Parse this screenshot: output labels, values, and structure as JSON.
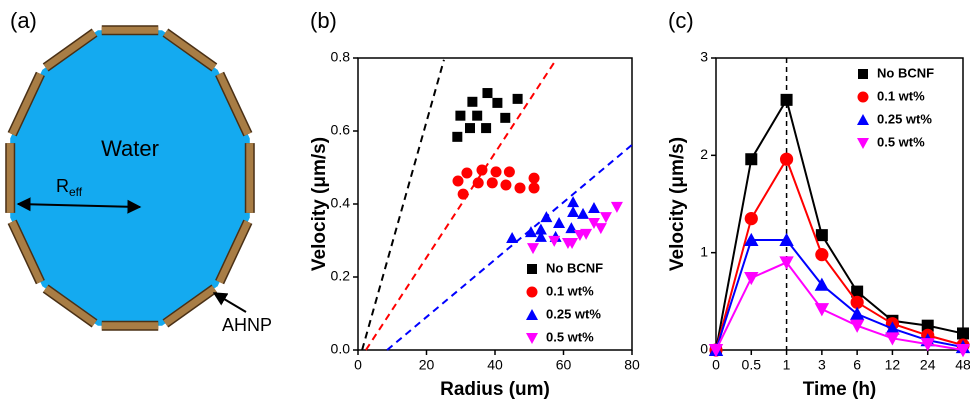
{
  "diagram": {
    "panel_label": "(a)",
    "inner_label": "Water",
    "radius_label": {
      "main": "R",
      "subscript": "eff"
    },
    "shell_label": "AHNP"
  },
  "chart_data": [
    {
      "type": "scatter",
      "panel_label": "(b)",
      "x_label": "Radius (um)",
      "y_label": "Velocity (μm/s)",
      "xlim": [
        0,
        80
      ],
      "xticks": [
        0,
        20,
        40,
        60,
        80
      ],
      "ylim": [
        0,
        0.8
      ],
      "yticks": [
        {
          "value": 0,
          "label": "0.0"
        },
        {
          "value": 0.2,
          "label": "0.2"
        },
        {
          "value": 0.4,
          "label": "0.4"
        },
        {
          "value": 0.6,
          "label": "0.6"
        },
        {
          "value": 0.8,
          "label": "0.8"
        }
      ],
      "legend": "lower right",
      "series": [
        {
          "name": "No BCNF",
          "color": "#000000",
          "marker": "square",
          "x": [
            29,
            29.9,
            33.4,
            37.8,
            40.7,
            37.4,
            32.7,
            34.8,
            43,
            46.6
          ],
          "values": [
            0.584,
            0.642,
            0.68,
            0.704,
            0.677,
            0.608,
            0.608,
            0.642,
            0.636,
            0.688
          ]
        },
        {
          "name": "0.1 wt%",
          "color": "#ff0000",
          "marker": "circle",
          "x": [
            29.2,
            31.8,
            36.2,
            40.3,
            44.2,
            51.4,
            51.4,
            47.3,
            43.2,
            39.2,
            35.1,
            30.7
          ],
          "values": [
            0.463,
            0.485,
            0.493,
            0.488,
            0.488,
            0.471,
            0.444,
            0.444,
            0.452,
            0.458,
            0.458,
            0.427
          ]
        },
        {
          "name": "0.25 wt%",
          "color": "#0000ff",
          "marker": "triangle",
          "x": [
            53.4,
            58.7,
            62.8,
            65.7,
            62.3,
            57.7,
            55,
            53.4,
            50.5,
            45,
            68.9,
            62.8
          ],
          "values": [
            0.31,
            0.348,
            0.378,
            0.373,
            0.334,
            0.31,
            0.364,
            0.33,
            0.323,
            0.307,
            0.389,
            0.405
          ]
        },
        {
          "name": "0.5 wt%",
          "color": "#ff00ff",
          "marker": "down-triangle",
          "x": [
            51.1,
            61.3,
            66.6,
            70.9,
            75.6,
            72.4,
            68.9,
            64.8,
            62.5,
            57.3
          ],
          "values": [
            0.279,
            0.293,
            0.318,
            0.334,
            0.392,
            0.364,
            0.348,
            0.315,
            0.293,
            0.299
          ]
        }
      ],
      "lines": [
        {
          "color": "#000000",
          "x": [
            1.2,
            25.1
          ],
          "values": [
            0,
            0.795
          ]
        },
        {
          "color": "#ff0000",
          "x": [
            2.3,
            57.8
          ],
          "values": [
            0,
            0.795
          ]
        },
        {
          "color": "#0000ff",
          "x": [
            8.5,
            80
          ],
          "values": [
            0,
            0.562
          ]
        }
      ]
    },
    {
      "type": "line",
      "panel_label": "(c)",
      "x_label": "Time (h)",
      "y_label": "Velocity (μm/s)",
      "categories": [
        "0",
        "0.5",
        "1",
        "3",
        "6",
        "12",
        "24",
        "48"
      ],
      "ylim": [
        0,
        3
      ],
      "yticks": [
        0,
        1,
        2,
        3
      ],
      "legend": "upper right",
      "vline": "1",
      "series": [
        {
          "name": "No BCNF",
          "color": "#000000",
          "marker": "square",
          "values": [
            0,
            1.96,
            2.57,
            1.18,
            0.6,
            0.3,
            0.25,
            0.17
          ]
        },
        {
          "name": "0.1 wt%",
          "color": "#ff0000",
          "marker": "circle",
          "values": [
            0,
            1.35,
            1.96,
            0.98,
            0.49,
            0.27,
            0.15,
            0.05
          ]
        },
        {
          "name": "0.25 wt%",
          "color": "#0000ff",
          "marker": "triangle",
          "values": [
            0,
            1.13,
            1.13,
            0.67,
            0.37,
            0.22,
            0.1,
            0.03
          ]
        },
        {
          "name": "0.5 wt%",
          "color": "#ff00ff",
          "marker": "down-triangle",
          "values": [
            0,
            0.74,
            0.9,
            0.42,
            0.25,
            0.12,
            0.06,
            0
          ]
        }
      ]
    }
  ]
}
